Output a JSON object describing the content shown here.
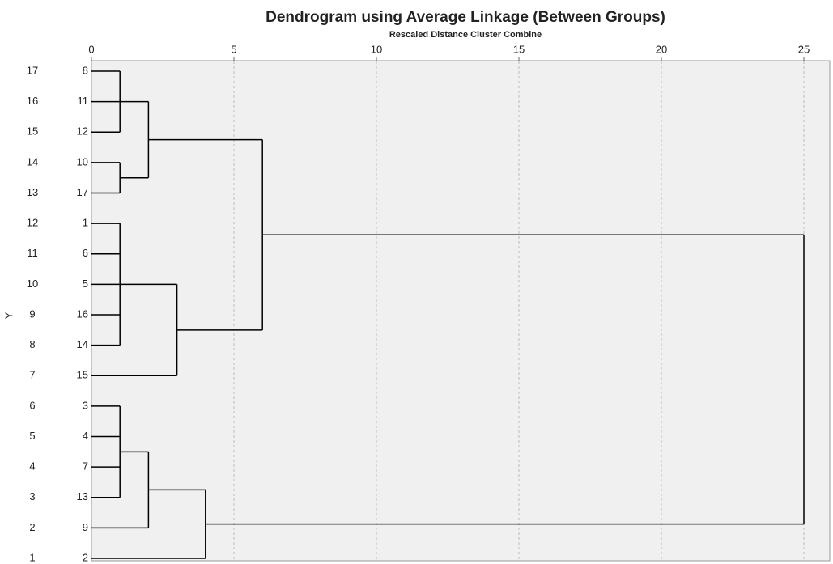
{
  "chart_data": {
    "type": "dendrogram",
    "title": "Dendrogram using Average Linkage (Between Groups)",
    "subtitle": "Rescaled Distance Cluster Combine",
    "y_label": "Y",
    "xlim": [
      0,
      25
    ],
    "xticks": [
      0,
      5,
      10,
      15,
      20,
      25
    ],
    "grid": true,
    "rows": [
      17,
      16,
      15,
      14,
      13,
      12,
      11,
      10,
      9,
      8,
      7,
      6,
      5,
      4,
      3,
      2,
      1
    ],
    "color": "#000000",
    "tree": {
      "distance": 25,
      "children": [
        {
          "distance": 6,
          "children": [
            {
              "distance": 2,
              "children": [
                {
                  "distance": 1,
                  "children": [
                    {
                      "label": "8"
                    },
                    {
                      "label": "11"
                    },
                    {
                      "label": "12"
                    }
                  ]
                },
                {
                  "distance": 1,
                  "children": [
                    {
                      "label": "10"
                    },
                    {
                      "label": "17"
                    }
                  ]
                }
              ]
            },
            {
              "distance": 3,
              "children": [
                {
                  "distance": 1,
                  "children": [
                    {
                      "label": "1"
                    },
                    {
                      "label": "6"
                    },
                    {
                      "label": "5"
                    },
                    {
                      "label": "16"
                    },
                    {
                      "label": "14"
                    }
                  ]
                },
                {
                  "label": "15"
                }
              ]
            }
          ]
        },
        {
          "distance": 4,
          "children": [
            {
              "distance": 2,
              "children": [
                {
                  "distance": 1,
                  "children": [
                    {
                      "label": "3"
                    },
                    {
                      "label": "4"
                    },
                    {
                      "label": "7"
                    },
                    {
                      "label": "13"
                    }
                  ]
                },
                {
                  "label": "9"
                }
              ]
            },
            {
              "label": "2"
            }
          ]
        }
      ]
    }
  }
}
